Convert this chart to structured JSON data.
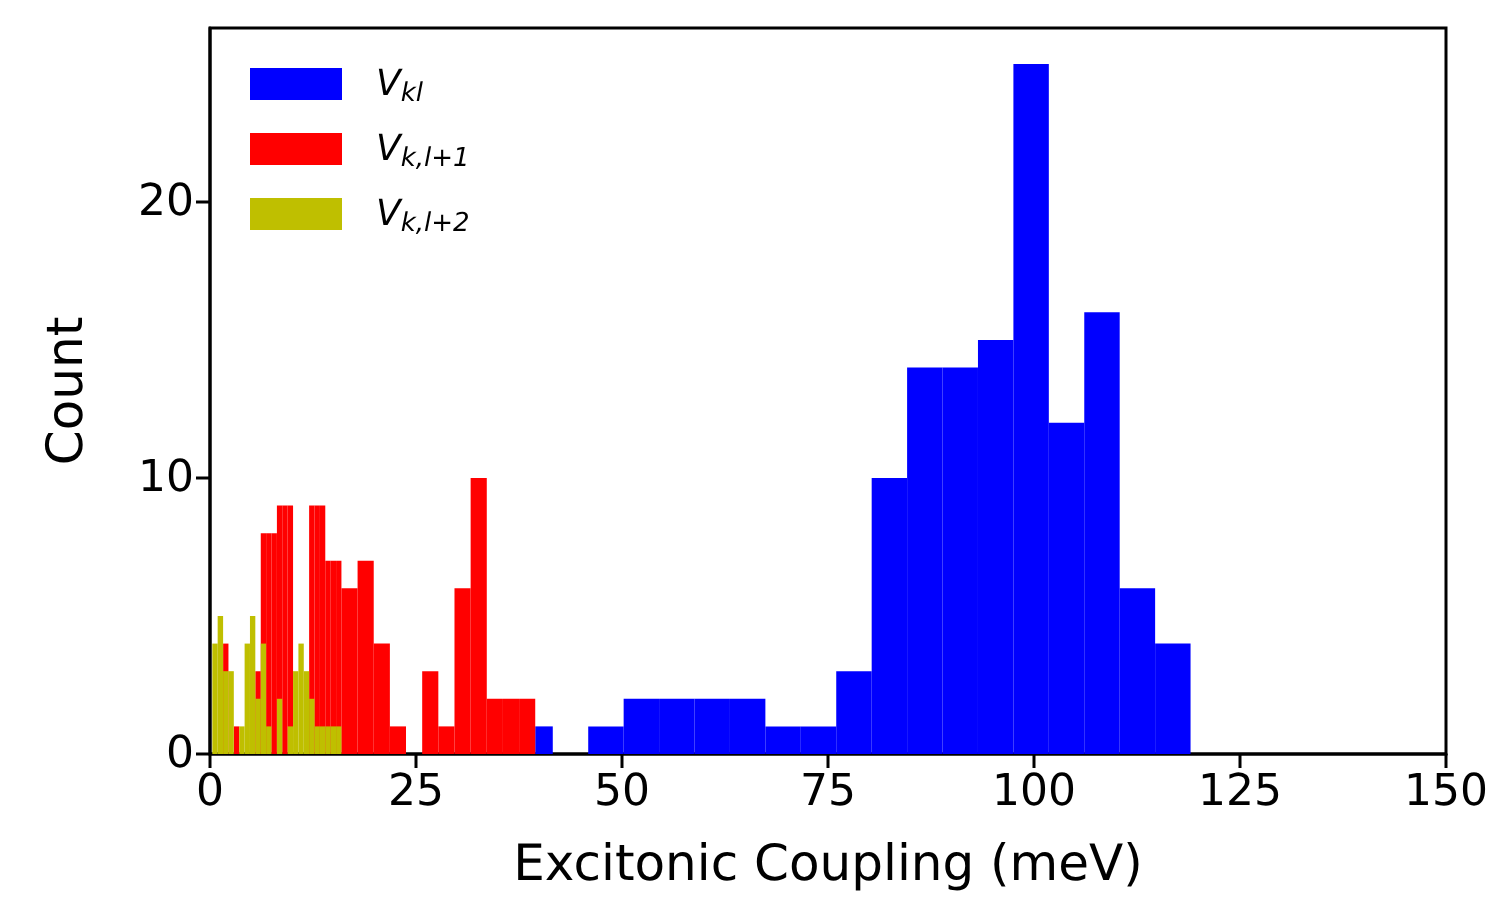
{
  "chart_data": {
    "type": "histogram",
    "xlabel": "Excitonic Coupling (meV)",
    "ylabel": "Count",
    "xlim": [
      0,
      150
    ],
    "xticks": [
      0,
      25,
      50,
      75,
      100,
      125,
      150
    ],
    "ylim": [
      0,
      26.3
    ],
    "yticks": [
      0,
      10,
      20
    ],
    "grid": false,
    "legend": "top left",
    "bins": [
      0.28,
      0.93,
      1.59,
      2.24,
      2.89,
      3.55,
      4.2,
      4.85,
      5.5,
      6.16,
      6.81,
      7.46,
      8.12,
      8.77,
      9.42,
      10.08,
      10.73,
      11.38,
      12.03,
      12.69,
      13.34,
      13.99,
      14.65,
      15.3,
      15.95,
      17.91,
      19.87,
      21.83,
      23.79,
      25.75,
      27.71,
      29.67,
      31.63,
      33.59,
      35.55,
      37.51,
      39.47,
      41.6,
      45.9,
      50.2,
      54.5,
      58.8,
      63.1,
      67.4,
      71.7,
      76.0,
      80.3,
      84.6,
      88.9,
      93.2,
      97.5,
      101.8,
      106.1,
      110.4,
      114.7,
      119.0
    ],
    "series": [
      {
        "name": "V$_{kl}$",
        "color": "#0000ff",
        "values": [
          null,
          null,
          null,
          null,
          null,
          null,
          null,
          null,
          null,
          null,
          null,
          null,
          null,
          null,
          null,
          null,
          null,
          null,
          null,
          null,
          null,
          null,
          null,
          null,
          null,
          null,
          null,
          null,
          null,
          null,
          null,
          null,
          null,
          null,
          null,
          null,
          1,
          0,
          1,
          2,
          2,
          2,
          2,
          1,
          1,
          3,
          10,
          14,
          14,
          15,
          25,
          12,
          16,
          6,
          4
        ]
      },
      {
        "name": "V$_{k,l+1}$",
        "color": "#ff0000",
        "values": [
          null,
          null,
          4,
          null,
          1,
          null,
          null,
          null,
          3,
          8,
          8,
          8,
          9,
          9,
          9,
          null,
          null,
          null,
          9,
          9,
          9,
          7,
          7,
          7,
          6,
          7,
          4,
          1,
          0,
          3,
          1,
          6,
          10,
          2,
          2,
          2,
          null,
          null,
          null,
          null,
          null,
          null,
          null,
          null,
          null,
          null,
          null,
          null,
          null,
          null,
          null,
          null,
          null,
          null,
          null
        ]
      },
      {
        "name": "V$_{k,l+2}$",
        "color": "#bfbf00",
        "values": [
          4,
          5,
          3,
          3,
          0,
          1,
          4,
          5,
          2,
          4,
          1,
          0,
          2,
          0,
          1,
          3,
          4,
          3,
          2,
          1,
          1,
          1,
          1,
          1,
          null,
          null,
          null,
          null,
          null,
          null,
          null,
          null,
          null,
          null,
          null,
          null,
          null,
          null,
          null,
          null,
          null,
          null,
          null,
          null,
          null,
          null,
          null,
          null,
          null,
          null,
          null,
          null,
          null,
          null,
          null
        ]
      }
    ]
  }
}
